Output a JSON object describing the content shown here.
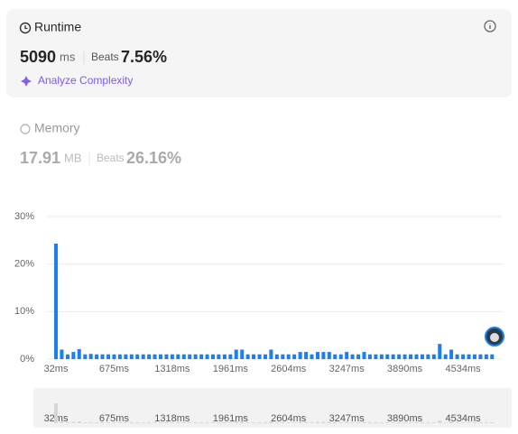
{
  "runtime": {
    "title": "Runtime",
    "value": "5090",
    "unit": "ms",
    "beats_label": "Beats",
    "beats": "7.56%",
    "action": "Analyze Complexity"
  },
  "memory": {
    "title": "Memory",
    "value": "17.91",
    "unit": "MB",
    "beats_label": "Beats",
    "beats": "26.16%"
  },
  "chart_data": {
    "type": "bar",
    "color": "#1a7ff0",
    "grid": true,
    "x": [
      32,
      96,
      161,
      225,
      289,
      354,
      418,
      482,
      546,
      611,
      675,
      739,
      804,
      868,
      932,
      997,
      1061,
      1125,
      1189,
      1254,
      1318,
      1382,
      1447,
      1511,
      1575,
      1640,
      1704,
      1768,
      1832,
      1897,
      1961,
      2025,
      2090,
      2154,
      2218,
      2283,
      2347,
      2411,
      2475,
      2540,
      2604,
      2668,
      2733,
      2797,
      2861,
      2926,
      2990,
      3054,
      3118,
      3183,
      3247,
      3311,
      3376,
      3440,
      3504,
      3569,
      3633,
      3697,
      3761,
      3826,
      3890,
      3954,
      4019,
      4083,
      4147,
      4212,
      4276,
      4340,
      4404,
      4469,
      4534,
      4598,
      4662,
      4727,
      4791,
      4855
    ],
    "values": [
      24.3,
      2.0,
      1.0,
      1.5,
      2.1,
      1.0,
      1.1,
      1.0,
      1.0,
      1.0,
      1.0,
      1.0,
      1.0,
      1.0,
      1.0,
      1.0,
      1.0,
      1.0,
      1.0,
      1.0,
      1.0,
      1.0,
      1.0,
      1.0,
      1.0,
      1.0,
      1.0,
      1.0,
      1.0,
      1.0,
      1.0,
      2.0,
      2.0,
      1.0,
      1.0,
      1.0,
      1.0,
      2.0,
      1.0,
      1.0,
      1.0,
      1.0,
      1.5,
      1.5,
      1.0,
      1.5,
      1.5,
      1.5,
      1.0,
      1.0,
      1.5,
      1.0,
      1.0,
      1.5,
      1.0,
      1.0,
      1.0,
      1.0,
      1.0,
      1.0,
      1.0,
      1.0,
      1.0,
      1.0,
      1.0,
      1.0,
      3.2,
      1.0,
      2.0,
      1.0,
      1.0,
      1.0,
      1.0,
      1.0,
      1.0,
      1.0
    ],
    "xlim": [
      -68,
      4972
    ],
    "xticks": [
      {
        "value": 32,
        "label": "32ms"
      },
      {
        "value": 675,
        "label": "675ms"
      },
      {
        "value": 1318,
        "label": "1318ms"
      },
      {
        "value": 1961,
        "label": "1961ms"
      },
      {
        "value": 2604,
        "label": "2604ms"
      },
      {
        "value": 3247,
        "label": "3247ms"
      },
      {
        "value": 3890,
        "label": "3890ms"
      },
      {
        "value": 4534,
        "label": "4534ms"
      }
    ],
    "ylim": [
      0,
      30
    ],
    "yticks": [
      {
        "value": 0,
        "label": "0%"
      },
      {
        "value": 10,
        "label": "10%"
      },
      {
        "value": 20,
        "label": "20%"
      },
      {
        "value": 30,
        "label": "30%"
      }
    ]
  }
}
